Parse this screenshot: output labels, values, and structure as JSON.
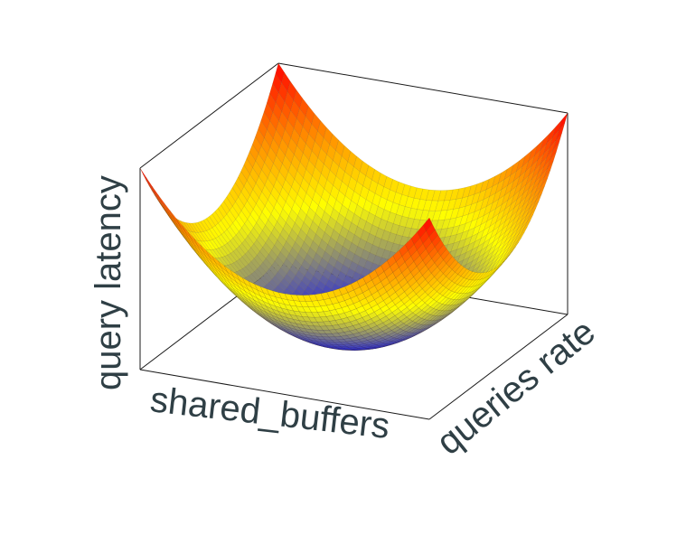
{
  "chart_data": {
    "type": "surface",
    "title": "",
    "xlabel": "shared_buffers",
    "ylabel": "queries rate",
    "zlabel": "query latency",
    "grid": false,
    "colorscale": [
      "#0000ff",
      "#ffff00",
      "#ff8000",
      "#ff0000"
    ],
    "surface": {
      "x": [
        -1.0,
        -0.5,
        0.0,
        0.5,
        1.0
      ],
      "y": [
        -1.0,
        -0.5,
        0.0,
        0.5,
        1.0
      ],
      "z_formula": "x^2 + y^2",
      "z_range": [
        0,
        2
      ]
    }
  }
}
